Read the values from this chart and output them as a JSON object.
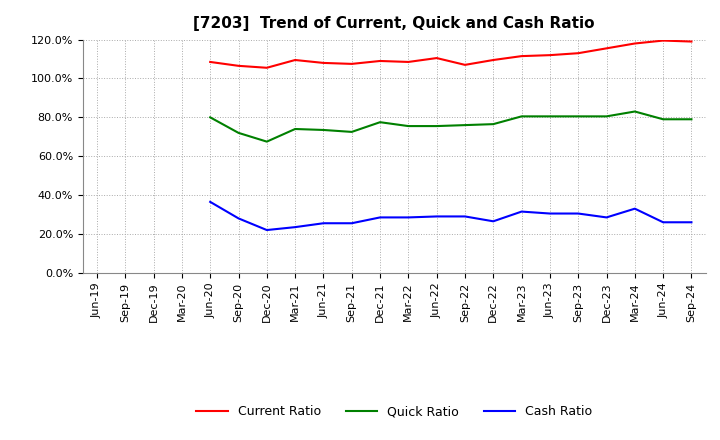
{
  "title": "[7203]  Trend of Current, Quick and Cash Ratio",
  "x_labels": [
    "Jun-19",
    "Sep-19",
    "Dec-19",
    "Mar-20",
    "Jun-20",
    "Sep-20",
    "Dec-20",
    "Mar-21",
    "Jun-21",
    "Sep-21",
    "Dec-21",
    "Mar-22",
    "Jun-22",
    "Sep-22",
    "Dec-22",
    "Mar-23",
    "Jun-23",
    "Sep-23",
    "Dec-23",
    "Mar-24",
    "Jun-24",
    "Sep-24"
  ],
  "current_ratio": [
    null,
    null,
    null,
    null,
    108.5,
    106.5,
    105.5,
    109.5,
    108.0,
    107.5,
    109.0,
    108.5,
    110.5,
    107.0,
    109.5,
    111.5,
    112.0,
    113.0,
    115.5,
    118.0,
    119.5,
    119.0
  ],
  "quick_ratio": [
    null,
    null,
    null,
    null,
    80.0,
    72.0,
    67.5,
    74.0,
    73.5,
    72.5,
    77.5,
    75.5,
    75.5,
    76.0,
    76.5,
    80.5,
    80.5,
    80.5,
    80.5,
    83.0,
    79.0,
    79.0
  ],
  "cash_ratio": [
    null,
    null,
    null,
    null,
    36.5,
    28.0,
    22.0,
    23.5,
    25.5,
    25.5,
    28.5,
    28.5,
    29.0,
    29.0,
    26.5,
    31.5,
    30.5,
    30.5,
    28.5,
    33.0,
    26.0,
    26.0
  ],
  "current_color": "#FF0000",
  "quick_color": "#008000",
  "cash_color": "#0000FF",
  "ylim": [
    0,
    120
  ],
  "yticks": [
    0,
    20,
    40,
    60,
    80,
    100,
    120
  ],
  "background_color": "#FFFFFF",
  "grid_color": "#AAAAAA",
  "line_width": 1.5,
  "title_fontsize": 11,
  "legend_fontsize": 9,
  "tick_fontsize": 8
}
